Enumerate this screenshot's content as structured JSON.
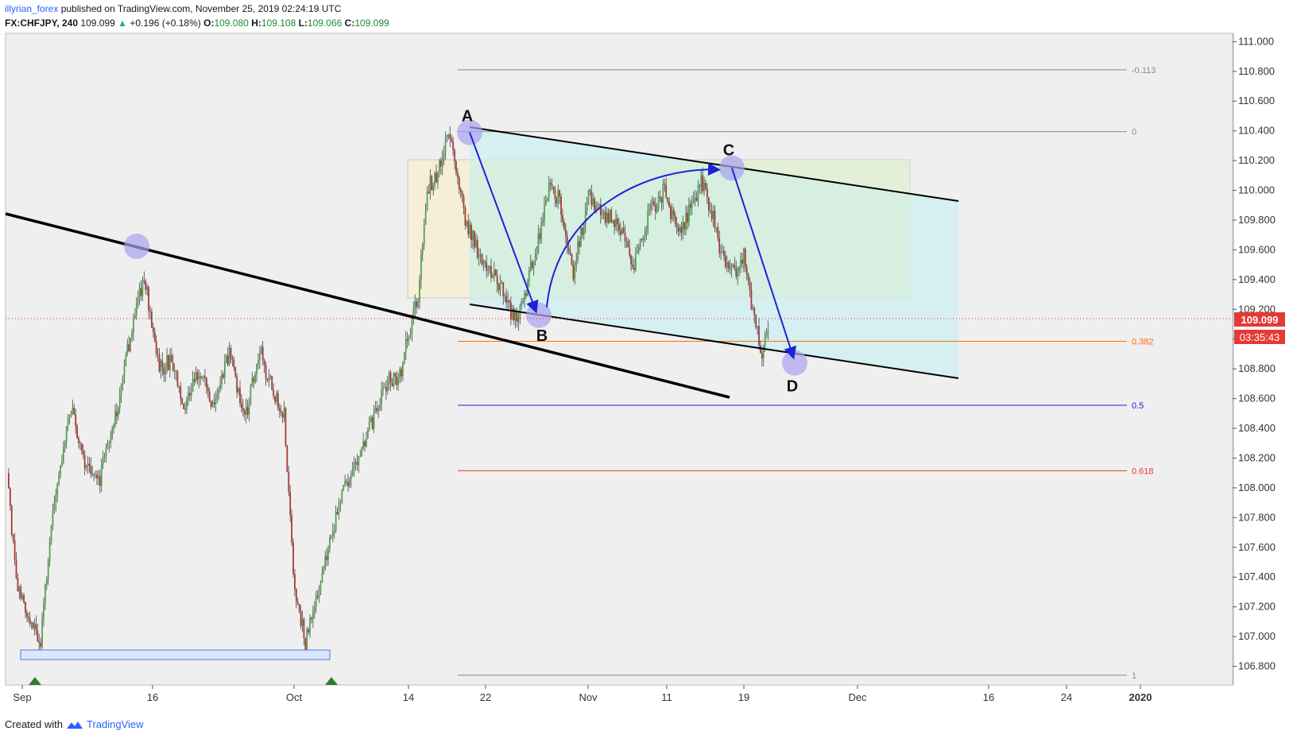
{
  "header": {
    "author": "illyrian_forex",
    "published_text": "published on TradingView.com, November 25, 2019 02:24:19 UTC",
    "symbol": "FX:CHFJPY, 240",
    "last": "109.099",
    "change_icon": "triangle-up-icon",
    "change": "+0.196 (+0.18%)",
    "o_label": "O:",
    "o_value": "109.080",
    "h_label": "H:",
    "h_value": "109.108",
    "l_label": "L:",
    "l_value": "109.066",
    "c_label": "C:",
    "c_value": "109.099"
  },
  "footer": {
    "created_with": "Created with",
    "brand": "TradingView",
    "brand_icon": "tradingview-logo-icon"
  },
  "colors": {
    "up": "#53a255",
    "down": "#a43a3a",
    "accent_blue": "#1e22d6",
    "fib_orange": "#ff6d00",
    "fib_red": "#e53935",
    "price_tag": "#e53935"
  },
  "chart_data": {
    "type": "candlestick",
    "instrument": "FX:CHFJPY",
    "timeframe": "240",
    "ylim": [
      106.68,
      111.05
    ],
    "y_ticks": [
      "111.000",
      "110.800",
      "110.600",
      "110.400",
      "110.200",
      "110.000",
      "109.800",
      "109.600",
      "109.400",
      "109.200",
      "109.000",
      "108.800",
      "108.600",
      "108.400",
      "108.200",
      "108.000",
      "107.800",
      "107.600",
      "107.400",
      "107.200",
      "107.000",
      "106.800"
    ],
    "x_ticks": [
      "Sep",
      "16",
      "Oct",
      "14",
      "22",
      "Nov",
      "11",
      "19",
      "Dec",
      "16",
      "24",
      "2020"
    ],
    "last_price": "109.099",
    "countdown": "03:35:43",
    "path_anchors": [
      {
        "i": 0,
        "p": 108.05
      },
      {
        "i": 6,
        "p": 107.4
      },
      {
        "i": 14,
        "p": 107.1
      },
      {
        "i": 22,
        "p": 106.98
      },
      {
        "i": 30,
        "p": 107.9
      },
      {
        "i": 42,
        "p": 108.55
      },
      {
        "i": 52,
        "p": 108.15
      },
      {
        "i": 60,
        "p": 108.02
      },
      {
        "i": 72,
        "p": 108.5
      },
      {
        "i": 84,
        "p": 109.2
      },
      {
        "i": 90,
        "p": 109.42
      },
      {
        "i": 100,
        "p": 108.8
      },
      {
        "i": 108,
        "p": 108.85
      },
      {
        "i": 116,
        "p": 108.55
      },
      {
        "i": 126,
        "p": 108.78
      },
      {
        "i": 136,
        "p": 108.55
      },
      {
        "i": 146,
        "p": 108.9
      },
      {
        "i": 156,
        "p": 108.45
      },
      {
        "i": 166,
        "p": 108.92
      },
      {
        "i": 176,
        "p": 108.6
      },
      {
        "i": 182,
        "p": 108.5
      },
      {
        "i": 188,
        "p": 107.4
      },
      {
        "i": 196,
        "p": 106.95
      },
      {
        "i": 202,
        "p": 107.2
      },
      {
        "i": 210,
        "p": 107.55
      },
      {
        "i": 220,
        "p": 107.95
      },
      {
        "i": 230,
        "p": 108.2
      },
      {
        "i": 240,
        "p": 108.45
      },
      {
        "i": 250,
        "p": 108.72
      },
      {
        "i": 258,
        "p": 108.75
      },
      {
        "i": 264,
        "p": 109.05
      },
      {
        "i": 270,
        "p": 109.3
      },
      {
        "i": 276,
        "p": 110.0
      },
      {
        "i": 284,
        "p": 110.15
      },
      {
        "i": 290,
        "p": 110.38
      },
      {
        "i": 300,
        "p": 109.85
      },
      {
        "i": 310,
        "p": 109.55
      },
      {
        "i": 320,
        "p": 109.45
      },
      {
        "i": 330,
        "p": 109.2
      },
      {
        "i": 336,
        "p": 109.15
      },
      {
        "i": 346,
        "p": 109.55
      },
      {
        "i": 356,
        "p": 110.0
      },
      {
        "i": 362,
        "p": 109.95
      },
      {
        "i": 372,
        "p": 109.45
      },
      {
        "i": 382,
        "p": 109.95
      },
      {
        "i": 392,
        "p": 109.85
      },
      {
        "i": 402,
        "p": 109.75
      },
      {
        "i": 412,
        "p": 109.5
      },
      {
        "i": 422,
        "p": 109.85
      },
      {
        "i": 432,
        "p": 110.0
      },
      {
        "i": 440,
        "p": 109.7
      },
      {
        "i": 448,
        "p": 109.85
      },
      {
        "i": 456,
        "p": 110.05
      },
      {
        "i": 462,
        "p": 109.9
      },
      {
        "i": 470,
        "p": 109.55
      },
      {
        "i": 478,
        "p": 109.45
      },
      {
        "i": 484,
        "p": 109.55
      },
      {
        "i": 490,
        "p": 109.2
      },
      {
        "i": 496,
        "p": 108.9
      },
      {
        "i": 500,
        "p": 109.1
      }
    ],
    "fibonacci": [
      {
        "level": "-0.113",
        "price": 110.81,
        "color": "#8a8a8a"
      },
      {
        "level": "0",
        "price": 110.395,
        "color": "#8a8a8a"
      },
      {
        "level": "0.382",
        "price": 108.985,
        "color": "#ff6d00"
      },
      {
        "level": "0.5",
        "price": 108.555,
        "color": "#1e22d6"
      },
      {
        "level": "0.618",
        "price": 108.115,
        "color": "#e53935"
      },
      {
        "level": "1",
        "price": 106.74,
        "color": "#8a8a8a"
      }
    ],
    "pattern_points": [
      {
        "label": "A",
        "price": 110.39
      },
      {
        "label": "B",
        "price": 109.16
      },
      {
        "label": "C",
        "price": 110.15
      },
      {
        "label": "D",
        "price": 108.84
      }
    ]
  }
}
